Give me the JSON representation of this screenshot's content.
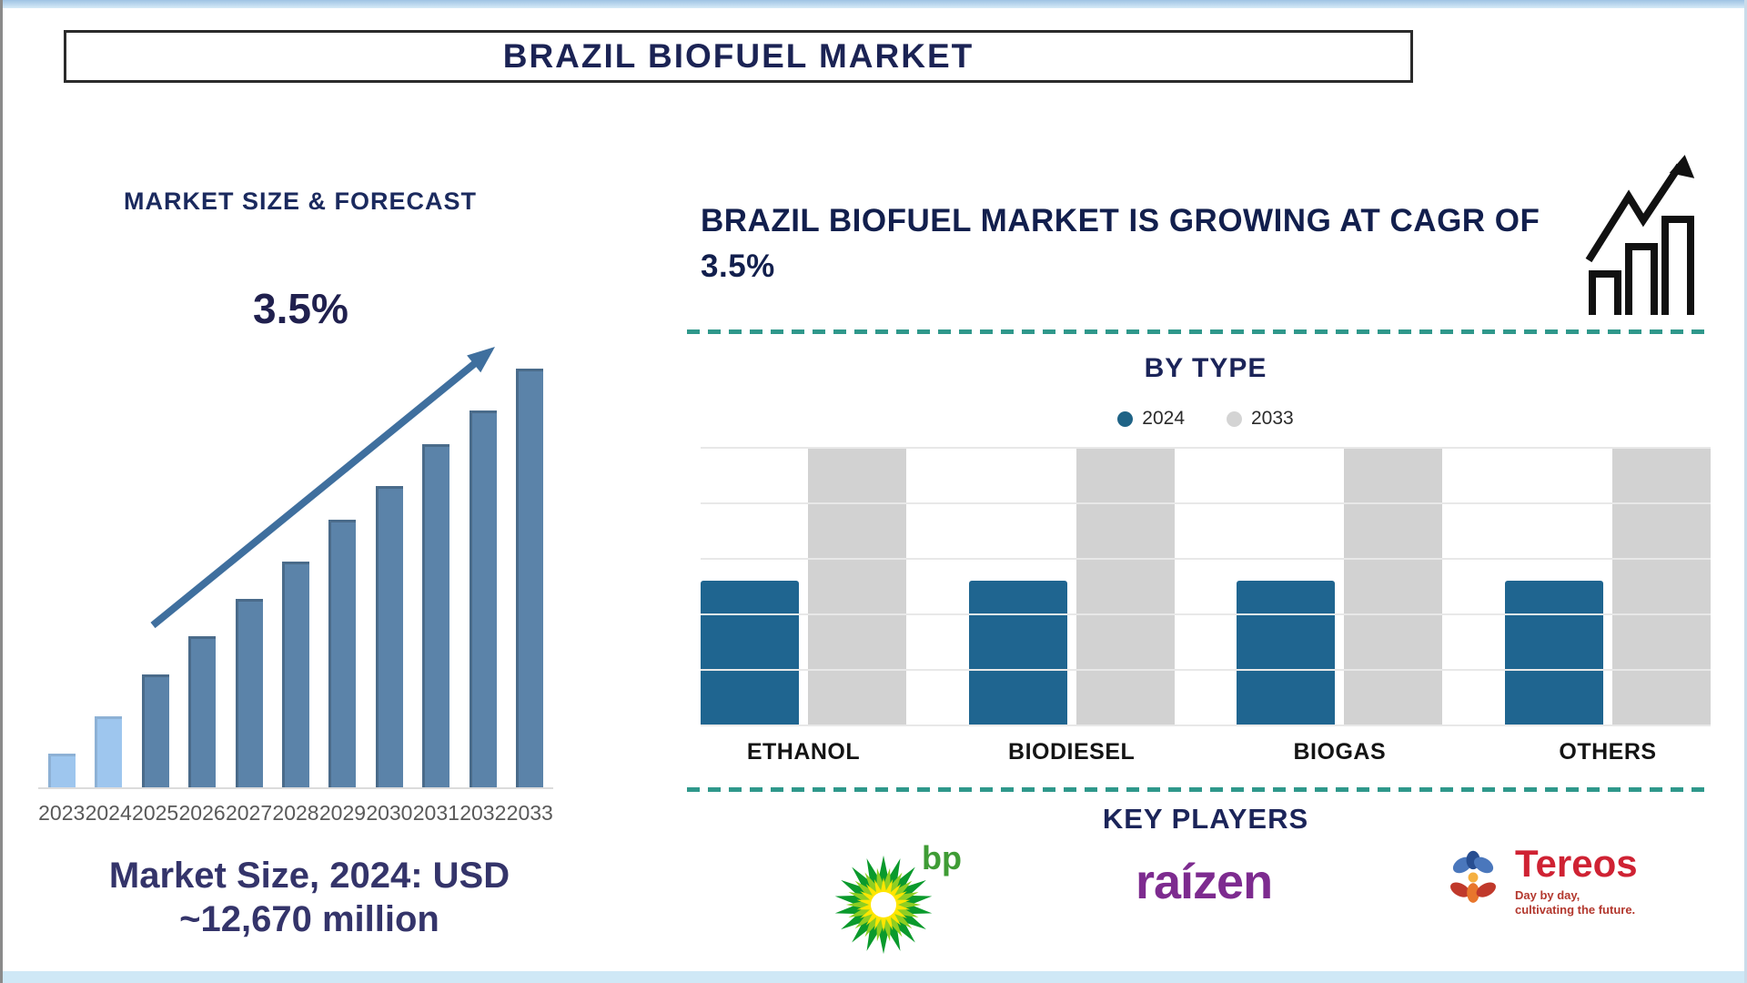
{
  "banner": {
    "title": "BRAZIL BIOFUEL MARKET"
  },
  "left_panel": {
    "section_title": "MARKET SIZE & FORECAST",
    "growth_label": "3.5%",
    "market_size_line1": "Market Size, 2024: USD",
    "market_size_line2": "~12,670 million"
  },
  "right_panel": {
    "headline": "BRAZIL BIOFUEL MARKET IS GROWING AT CAGR OF 3.5%",
    "growth_icon": "growth-chart-icon",
    "by_type_title": "BY TYPE",
    "key_players_title": "KEY PLAYERS",
    "players": [
      {
        "name": "bp",
        "logo": "bp-helios-icon",
        "color": "#3f9c35"
      },
      {
        "name": "raízen",
        "logo": "raizen-wordmark",
        "color": "#7d2b8f"
      },
      {
        "name": "Tereos",
        "logo": "tereos-flower-icon",
        "color": "#cf2233",
        "tagline_line1": "Day by day,",
        "tagline_line2": "cultivating the future."
      }
    ]
  },
  "chart_data": [
    {
      "type": "bar",
      "title": "MARKET SIZE & FORECAST",
      "categories": [
        "2023",
        "2024",
        "2025",
        "2026",
        "2027",
        "2028",
        "2029",
        "2030",
        "2031",
        "2032",
        "2033"
      ],
      "values": [
        8,
        17,
        27,
        36,
        45,
        54,
        64,
        72,
        82,
        90,
        100
      ],
      "units": "relative bar height (% of 2033 bar); no y-axis shown",
      "annotation": "3.5% CAGR trend arrow over bars",
      "highlight_note": "2023 and 2024 bars light blue, 2025-2033 steel blue",
      "colors": {
        "light_bar": "#9ec6ee",
        "bar": "#5b83a9",
        "arrow": "#3f6f9e"
      },
      "xlabel": "",
      "ylabel": "",
      "grid": false
    },
    {
      "type": "bar",
      "title": "BY TYPE",
      "categories": [
        "ETHANOL",
        "BIODIESEL",
        "BIOGAS",
        "OTHERS"
      ],
      "series": [
        {
          "name": "2024",
          "color": "#1f6590",
          "values": [
            52,
            52,
            52,
            52
          ]
        },
        {
          "name": "2033",
          "color": "#d2d2d2",
          "values": [
            100,
            100,
            100,
            100
          ]
        }
      ],
      "units": "relative bar height (% of 2033 bar); no y-axis shown",
      "legend": [
        {
          "label": "2024",
          "color": "#1f6386"
        },
        {
          "label": "2033",
          "color": "#d4d4d4"
        }
      ],
      "legend_position": "top",
      "grid": true,
      "gridline_pcts": [
        0,
        20,
        40,
        60,
        80,
        100
      ],
      "ylim": [
        0,
        100
      ]
    }
  ],
  "colors": {
    "navy_text": "#1b2354",
    "gray_axis_text": "#595959",
    "dashed_divider": "#2f988b",
    "frame_band": "#cfe8f6"
  }
}
